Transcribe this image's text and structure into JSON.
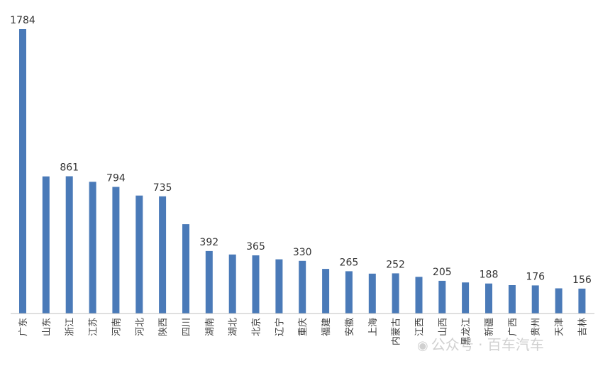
{
  "chart_data": {
    "type": "bar",
    "title": "",
    "xlabel": "",
    "ylabel": "",
    "ylim": [
      0,
      1800
    ],
    "grid": false,
    "legend": "none",
    "bar_color": "#4a7ab8",
    "categories": [
      "广东",
      "山东",
      "浙江",
      "江苏",
      "河南",
      "河北",
      "陕西",
      "四川",
      "湖南",
      "湖北",
      "北京",
      "辽宁",
      "重庆",
      "福建",
      "安徽",
      "上海",
      "内蒙古",
      "江西",
      "山西",
      "黑龙江",
      "新疆",
      "广西",
      "贵州",
      "天津",
      "吉林"
    ],
    "values": [
      1784,
      860,
      861,
      826,
      794,
      740,
      735,
      560,
      392,
      370,
      365,
      340,
      330,
      280,
      265,
      250,
      252,
      230,
      205,
      195,
      188,
      178,
      176,
      158,
      156
    ],
    "labeled": [
      true,
      false,
      true,
      false,
      true,
      false,
      true,
      false,
      true,
      false,
      true,
      false,
      true,
      false,
      true,
      false,
      true,
      false,
      true,
      false,
      true,
      false,
      true,
      false,
      true
    ]
  },
  "watermark": {
    "icon": "wechat-icon",
    "text": "公众号 · 百车汽车"
  }
}
